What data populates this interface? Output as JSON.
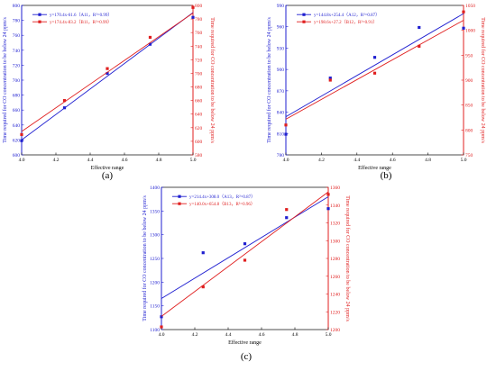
{
  "colors": {
    "blue": "#1f1fd0",
    "red": "#e01f1f",
    "black": "#000000"
  },
  "chart_data": [
    {
      "panel": "(a)",
      "type": "scatter",
      "xlabel": "Effective range",
      "ylabel_left": "Time required for CO concentration to be below 24 ppm/s",
      "ylabel_right": "Time required for CO concentration to be below 24 ppm/s",
      "xlim": [
        4.0,
        5.0
      ],
      "xticks": [
        "4.0",
        "4.2",
        "4.4",
        "4.6",
        "4.8",
        "5.0"
      ],
      "ylim_left": [
        600,
        800
      ],
      "yticks_left": [
        "600",
        "620",
        "640",
        "660",
        "680",
        "700",
        "720",
        "740",
        "760",
        "780",
        "800"
      ],
      "ylim_right": [
        580,
        800
      ],
      "yticks_right": [
        "580",
        "600",
        "620",
        "640",
        "660",
        "680",
        "700",
        "720",
        "740",
        "760",
        "780",
        "800"
      ],
      "series": [
        {
          "name": "y=170.4x-61.6（A11，R²=0.99）",
          "axis": "left",
          "color": "#1f1fd0",
          "x": [
            4.0,
            4.25,
            4.5,
            4.75,
            5.0
          ],
          "y": [
            619,
            663,
            709,
            748,
            784
          ],
          "fit": {
            "slope": 170.4,
            "intercept": -61.6
          }
        },
        {
          "name": "y=174.4x-83.2（B11，R²=0.99）",
          "axis": "right",
          "color": "#e01f1f",
          "x": [
            4.0,
            4.25,
            4.5,
            4.75,
            5.0
          ],
          "y": [
            610,
            660,
            707,
            753,
            797
          ],
          "fit": {
            "slope": 174.4,
            "intercept": -83.2
          }
        }
      ]
    },
    {
      "panel": "(b)",
      "type": "scatter",
      "xlabel": "Effective range",
      "ylabel_left": "Time required for CO concentration to be below 24 ppm/s",
      "ylabel_right": "Time required for CO concentration to be below 24 ppm/s",
      "xlim": [
        4.0,
        5.0
      ],
      "xticks": [
        "4.0",
        "4.2",
        "4.4",
        "4.6",
        "4.8",
        "5.0"
      ],
      "ylim_left": [
        780,
        990
      ],
      "yticks_left": [
        "780",
        "810",
        "840",
        "870",
        "900",
        "930",
        "960",
        "990"
      ],
      "ylim_right": [
        750,
        1050
      ],
      "yticks_right": [
        "750",
        "800",
        "850",
        "900",
        "950",
        "1000",
        "1050"
      ],
      "series": [
        {
          "name": "y=144.8x+254.4（A12，R²=0.87）",
          "axis": "left",
          "color": "#1f1fd0",
          "x": [
            4.0,
            4.25,
            4.5,
            4.75,
            5.0
          ],
          "y": [
            809,
            888,
            917,
            959,
            958
          ],
          "fit": {
            "slope": 144.8,
            "intercept": 254.4
          }
        },
        {
          "name": "y=198.6x+27.2（B12，R²=0.91）",
          "axis": "right",
          "color": "#e01f1f",
          "x": [
            4.0,
            4.25,
            4.5,
            4.75,
            5.0
          ],
          "y": [
            810,
            900,
            914,
            968,
            1037
          ],
          "fit": {
            "slope": 198.6,
            "intercept": 27.2
          }
        }
      ]
    },
    {
      "panel": "(c)",
      "type": "scatter",
      "xlabel": "Effective range",
      "ylabel_left": "Time required for CO concentration to be below 24 ppm/s",
      "ylabel_right": "Time required for CO concentration to be below 24 ppm/s",
      "xlim": [
        4.0,
        5.0
      ],
      "xticks": [
        "4.0",
        "4.2",
        "4.4",
        "4.6",
        "4.8",
        "5.0"
      ],
      "ylim_left": [
        1100,
        1400
      ],
      "yticks_left": [
        "1100",
        "1150",
        "1200",
        "1250",
        "1300",
        "1350",
        "1400"
      ],
      "ylim_right": [
        1200,
        1360
      ],
      "yticks_right": [
        "1200",
        "1220",
        "1240",
        "1260",
        "1280",
        "1300",
        "1320",
        "1340",
        "1360"
      ],
      "series": [
        {
          "name": "y=214.4x+308.0（A13，R²=0.87）",
          "axis": "left",
          "color": "#1f1fd0",
          "x": [
            4.0,
            4.25,
            4.5,
            4.75,
            5.0
          ],
          "y": [
            1127,
            1262,
            1281,
            1336,
            1355
          ],
          "fit": {
            "slope": 214.4,
            "intercept": 308.0
          }
        },
        {
          "name": "y=140.0x+654.8（B13，R²=0.96）",
          "axis": "right",
          "color": "#e01f1f",
          "x": [
            4.0,
            4.25,
            4.5,
            4.75,
            5.0
          ],
          "y": [
            1203,
            1248,
            1278,
            1335,
            1352
          ],
          "fit": {
            "slope": 140.0,
            "intercept": 654.8
          }
        }
      ]
    }
  ]
}
